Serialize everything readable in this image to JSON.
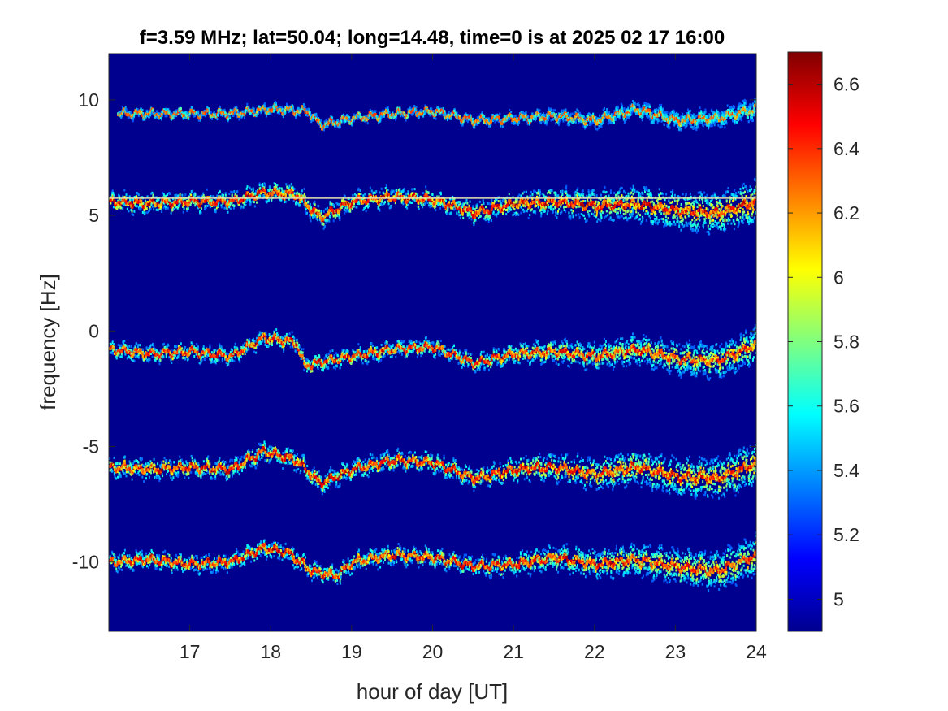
{
  "chart_data": {
    "type": "heatmap",
    "title": "f=3.59 MHz;  lat=50.04; long=14.48, time=0 is at 2025 02 17 16:00",
    "xlabel": "hour of day [UT]",
    "ylabel": "frequency [Hz]",
    "xlim": [
      16,
      24
    ],
    "ylim": [
      -13,
      12
    ],
    "xticks": [
      17,
      18,
      19,
      20,
      21,
      22,
      23,
      24
    ],
    "yticks": [
      -10,
      -5,
      0,
      5,
      10
    ],
    "grid": false,
    "colormap": "jet",
    "background_color": "#00008f",
    "colorbar": {
      "location": "right",
      "range": [
        4.9,
        6.7
      ],
      "ticks": [
        5,
        5.2,
        5.4,
        5.6,
        5.8,
        6,
        6.2,
        6.4,
        6.6
      ]
    },
    "traces": [
      {
        "label_freq": 9.5,
        "x": [
          16.1,
          16.5,
          17.0,
          17.5,
          18.0,
          18.45,
          18.6,
          19.0,
          19.5,
          20.0,
          20.5,
          21.0,
          21.5,
          22.0,
          22.5,
          23.0,
          23.5,
          24.0
        ],
        "y": [
          9.4,
          9.4,
          9.4,
          9.4,
          9.6,
          9.5,
          8.9,
          9.2,
          9.4,
          9.5,
          9.1,
          9.2,
          9.3,
          9.1,
          9.6,
          9.1,
          9.2,
          9.6
        ],
        "intensity": 0.45,
        "spread": 0.25
      },
      {
        "label_freq": 5.7,
        "x": [
          16.0,
          16.5,
          17.0,
          17.5,
          17.9,
          18.3,
          18.6,
          19.0,
          19.5,
          20.0,
          20.5,
          21.0,
          21.5,
          22.0,
          22.5,
          23.0,
          23.5,
          24.0
        ],
        "y": [
          5.6,
          5.5,
          5.6,
          5.6,
          6.0,
          5.9,
          4.9,
          5.6,
          5.8,
          5.7,
          5.1,
          5.5,
          5.6,
          5.4,
          5.5,
          5.2,
          5.1,
          5.6
        ],
        "intensity": 0.9,
        "spread": 0.6
      },
      {
        "label_freq": -0.8,
        "x": [
          16.0,
          16.5,
          17.0,
          17.5,
          17.9,
          18.3,
          18.4,
          19.0,
          19.5,
          20.0,
          20.5,
          21.0,
          21.5,
          22.0,
          22.5,
          23.0,
          23.5,
          24.0
        ],
        "y": [
          -0.8,
          -1.0,
          -0.9,
          -1.1,
          -0.3,
          -0.5,
          -1.5,
          -1.1,
          -0.8,
          -0.7,
          -1.4,
          -1.0,
          -0.9,
          -1.1,
          -0.8,
          -1.2,
          -1.3,
          -0.6
        ],
        "intensity": 0.8,
        "spread": 0.5
      },
      {
        "label_freq": -5.8,
        "x": [
          16.0,
          16.5,
          17.0,
          17.5,
          17.9,
          18.3,
          18.6,
          19.0,
          19.5,
          20.0,
          20.5,
          21.0,
          21.5,
          22.0,
          22.5,
          23.0,
          23.5,
          24.0
        ],
        "y": [
          -5.9,
          -6.0,
          -5.9,
          -6.0,
          -5.2,
          -5.6,
          -6.6,
          -6.0,
          -5.6,
          -5.7,
          -6.4,
          -6.0,
          -5.9,
          -6.2,
          -5.9,
          -6.3,
          -6.4,
          -5.7
        ],
        "intensity": 0.9,
        "spread": 0.6
      },
      {
        "label_freq": -10.0,
        "x": [
          16.0,
          16.5,
          17.0,
          17.5,
          17.9,
          18.2,
          18.5,
          18.8,
          19.0,
          19.5,
          20.0,
          20.5,
          21.0,
          21.5,
          22.0,
          22.5,
          23.0,
          23.5,
          24.0
        ],
        "y": [
          -10.0,
          -9.9,
          -10.1,
          -10.0,
          -9.4,
          -9.6,
          -10.4,
          -10.6,
          -10.0,
          -9.7,
          -9.8,
          -10.2,
          -10.1,
          -9.8,
          -10.1,
          -9.9,
          -10.2,
          -10.4,
          -9.7
        ],
        "intensity": 0.85,
        "spread": 0.55
      }
    ],
    "stationary_line": {
      "y": 5.75,
      "x_range": [
        16.0,
        24.0
      ],
      "intensity": 0.95
    }
  }
}
